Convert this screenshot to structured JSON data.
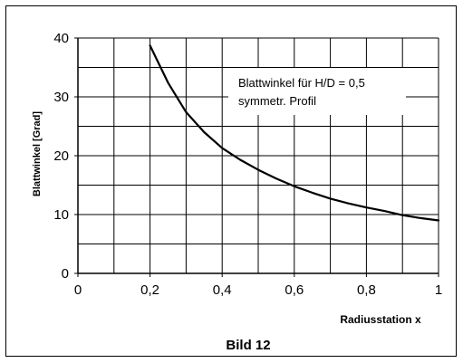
{
  "chart_data": {
    "type": "line",
    "title": "",
    "caption": "Bild 12",
    "xlabel": "Radiusstation x",
    "ylabel": "Blattwinkel [Grad]",
    "xlim": [
      0,
      1
    ],
    "ylim": [
      0,
      40
    ],
    "x_ticks": [
      "0",
      "0,2",
      "0,4",
      "0,6",
      "0,8",
      "1"
    ],
    "y_ticks": [
      "0",
      "10",
      "20",
      "30",
      "40"
    ],
    "grid": true,
    "legend": "none",
    "annotation": [
      "Blattwinkel für H/D = 0,5",
      "symmetr. Profil"
    ],
    "line_color": "#000000",
    "series": [
      {
        "x": [
          0.2,
          0.25,
          0.3,
          0.35,
          0.4,
          0.45,
          0.5,
          0.55,
          0.6,
          0.65,
          0.7,
          0.75,
          0.8,
          0.85,
          0.9,
          0.95,
          1.0
        ],
        "y": [
          38.7,
          32.4,
          27.4,
          24.0,
          21.3,
          19.3,
          17.6,
          16.1,
          14.8,
          13.7,
          12.7,
          11.9,
          11.2,
          10.6,
          9.9,
          9.4,
          9.0
        ]
      }
    ]
  }
}
